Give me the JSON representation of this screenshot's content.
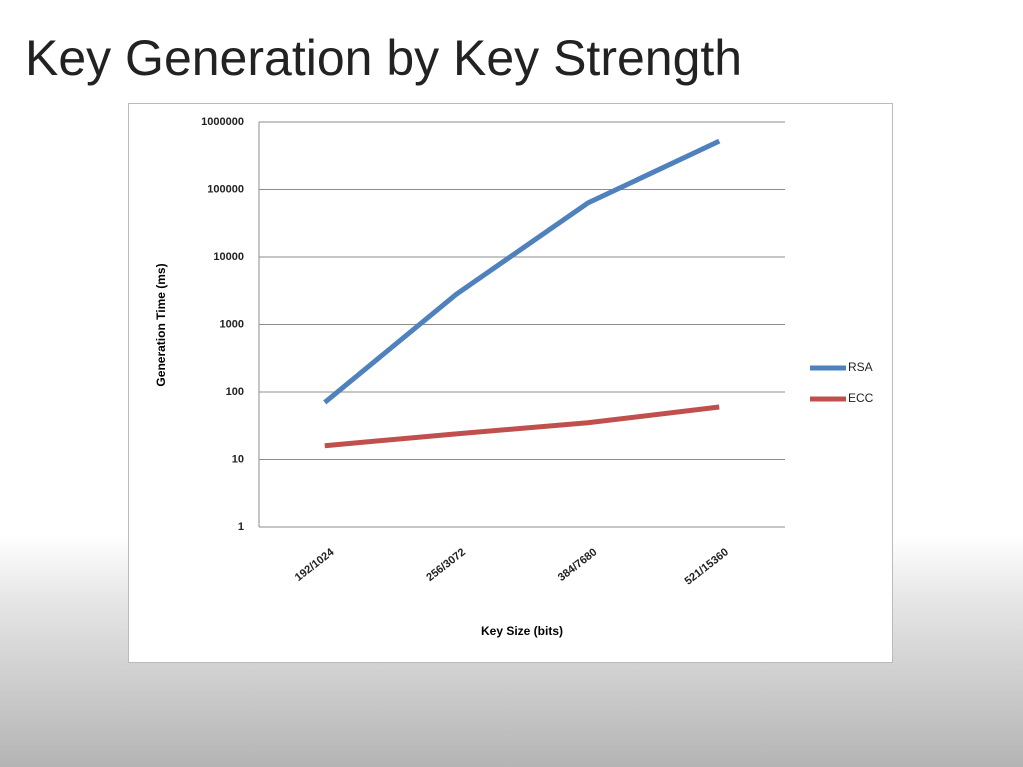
{
  "chart_data": {
    "type": "line",
    "title": "Key Generation by Key Strength",
    "x_label": "Key Size  (bits)",
    "y_label": "Generation Time (ms)",
    "categories": [
      "192/1024",
      "256/3072",
      "384/7680",
      "521/15360"
    ],
    "series": [
      {
        "name": "RSA",
        "color": "#4f81bd",
        "values": [
          70,
          2800,
          63000,
          520000
        ]
      },
      {
        "name": "ECC",
        "color": "#c0504d",
        "values": [
          16,
          24,
          35,
          60
        ]
      }
    ],
    "log_y": true,
    "ylim": [
      1,
      1000000
    ],
    "yticks": [
      1,
      10,
      100,
      1000,
      10000,
      100000,
      1000000
    ],
    "grid": true,
    "legend": "right"
  }
}
